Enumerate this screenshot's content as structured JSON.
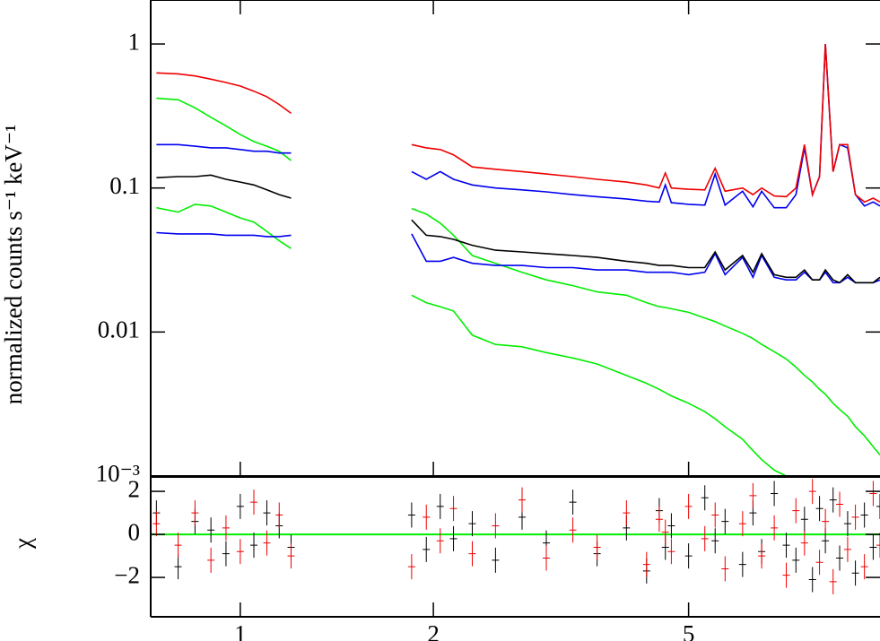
{
  "chart_data": [
    {
      "type": "line",
      "ylabel": "normalized counts s⁻¹ keV⁻¹",
      "log_x": true,
      "log_y": true,
      "xlim": [
        0.725,
        9.94
      ],
      "ylim": [
        0.001,
        2.02
      ],
      "xticks": [
        1,
        2,
        5
      ],
      "yticks": [
        {
          "value": 0.001,
          "label": "10⁻³"
        },
        0.01,
        0.1,
        1
      ],
      "x": [
        0.74,
        0.8,
        0.85,
        0.9,
        0.95,
        1.0,
        1.05,
        1.1,
        1.15,
        1.2,
        1.5,
        1.85,
        1.95,
        2.05,
        2.15,
        2.3,
        2.5,
        2.75,
        3.0,
        3.3,
        3.6,
        4.0,
        4.3,
        4.5,
        4.6,
        4.7,
        5.0,
        5.3,
        5.5,
        5.7,
        6.07,
        6.3,
        6.5,
        6.8,
        7.1,
        7.35,
        7.58,
        7.8,
        8.0,
        8.17,
        8.4,
        8.6,
        8.85,
        9.1,
        9.4,
        9.7,
        9.94
      ],
      "series": [
        {
          "color": "#00ee00",
          "values": [
            0.42,
            0.41,
            0.36,
            0.31,
            0.27,
            0.235,
            0.21,
            0.195,
            0.18,
            0.155,
            null,
            0.072,
            0.066,
            0.057,
            0.047,
            0.034,
            0.03,
            0.026,
            0.023,
            0.021,
            0.019,
            0.018,
            0.016,
            0.015,
            0.0148,
            0.0145,
            0.0137,
            0.0125,
            0.0118,
            0.011,
            0.0098,
            0.009,
            0.0082,
            0.0073,
            0.0065,
            0.0057,
            0.005,
            0.0045,
            0.004,
            0.0037,
            0.0032,
            0.0029,
            0.0026,
            0.0022,
            0.0019,
            0.0016,
            0.0014
          ]
        },
        {
          "color": "#00ee00",
          "values": [
            0.073,
            0.068,
            0.077,
            0.075,
            0.068,
            0.062,
            0.058,
            0.05,
            0.043,
            0.038,
            null,
            0.018,
            0.016,
            0.015,
            0.014,
            0.0095,
            0.0082,
            0.0079,
            0.0072,
            0.0066,
            0.006,
            0.005,
            0.0044,
            0.004,
            0.0038,
            0.0036,
            0.0032,
            0.0028,
            0.0025,
            0.0022,
            0.0018,
            0.0015,
            0.0013,
            0.0011,
            0.001,
            null,
            null,
            null,
            null,
            null,
            null,
            null,
            null,
            null,
            null,
            null,
            null
          ]
        },
        {
          "color": "#0000ee",
          "values": [
            0.2,
            0.2,
            0.195,
            0.19,
            0.19,
            0.185,
            0.18,
            0.18,
            0.175,
            0.175,
            null,
            0.13,
            0.115,
            0.13,
            0.115,
            0.105,
            0.1,
            0.097,
            0.094,
            0.09,
            0.087,
            0.084,
            0.081,
            0.08,
            0.105,
            0.079,
            0.077,
            0.076,
            0.125,
            0.076,
            0.095,
            0.074,
            0.095,
            0.073,
            0.073,
            0.09,
            0.19,
            0.09,
            0.12,
            1.0,
            0.13,
            0.2,
            0.19,
            0.09,
            0.075,
            0.08,
            0.075
          ]
        },
        {
          "color": "#0000ee",
          "values": [
            0.049,
            0.048,
            0.048,
            0.048,
            0.047,
            0.047,
            0.047,
            0.046,
            0.046,
            0.047,
            null,
            0.048,
            0.031,
            0.031,
            0.033,
            0.03,
            0.029,
            0.029,
            0.028,
            0.028,
            0.027,
            0.027,
            0.026,
            0.026,
            0.026,
            0.026,
            0.025,
            0.026,
            0.035,
            0.025,
            0.033,
            0.024,
            0.034,
            0.024,
            0.023,
            0.023,
            0.026,
            0.023,
            0.023,
            0.026,
            0.022,
            0.022,
            0.024,
            0.022,
            0.022,
            0.022,
            0.023
          ]
        },
        {
          "color": "#ee0000",
          "values": [
            0.63,
            0.62,
            0.6,
            0.57,
            0.54,
            0.51,
            0.47,
            0.43,
            0.38,
            0.33,
            null,
            0.2,
            0.19,
            0.185,
            0.17,
            0.14,
            0.135,
            0.13,
            0.125,
            0.12,
            0.115,
            0.11,
            0.105,
            0.1,
            0.127,
            0.1,
            0.098,
            0.097,
            0.137,
            0.095,
            0.1,
            0.09,
            0.1,
            0.088,
            0.087,
            0.1,
            0.2,
            0.09,
            0.12,
            1.0,
            0.13,
            0.2,
            0.2,
            0.09,
            0.08,
            0.085,
            0.08
          ]
        },
        {
          "color": "#000000",
          "values": [
            0.118,
            0.12,
            0.12,
            0.123,
            0.115,
            0.11,
            0.105,
            0.097,
            0.09,
            0.085,
            null,
            0.06,
            0.047,
            0.046,
            0.044,
            0.04,
            0.037,
            0.036,
            0.035,
            0.034,
            0.033,
            0.031,
            0.03,
            0.029,
            0.029,
            0.029,
            0.028,
            0.028,
            0.036,
            0.027,
            0.034,
            0.026,
            0.035,
            0.025,
            0.024,
            0.024,
            0.027,
            0.023,
            0.023,
            0.027,
            0.023,
            0.022,
            0.025,
            0.022,
            0.022,
            0.022,
            0.024
          ]
        }
      ]
    },
    {
      "type": "scatter",
      "ylabel": "χ",
      "log_x": true,
      "xlim": [
        0.725,
        9.94
      ],
      "ylim": [
        -3.83,
        2.67
      ],
      "xticks": [
        1,
        2,
        5
      ],
      "yticks": [
        {
          "value": -2,
          "label": "−2"
        },
        0,
        2
      ],
      "zero_line_color": "#00ee00",
      "x": [
        0.74,
        0.8,
        0.85,
        0.9,
        0.95,
        1.0,
        1.05,
        1.1,
        1.15,
        1.2,
        1.5,
        1.85,
        1.95,
        2.05,
        2.15,
        2.3,
        2.5,
        2.75,
        3.0,
        3.3,
        3.6,
        4.0,
        4.3,
        4.5,
        4.6,
        4.7,
        5.0,
        5.3,
        5.5,
        5.7,
        6.07,
        6.3,
        6.5,
        6.8,
        7.1,
        7.35,
        7.58,
        7.8,
        8.0,
        8.17,
        8.4,
        8.6,
        8.85,
        9.1,
        9.4,
        9.7,
        9.94
      ],
      "series": [
        {
          "color": "#000000",
          "values": [
            1.0,
            -1.5,
            0.6,
            0.2,
            -0.9,
            1.3,
            -0.5,
            1.0,
            0.4,
            -0.6,
            null,
            0.9,
            -0.7,
            1.3,
            -0.2,
            0.5,
            -1.2,
            0.8,
            -0.4,
            1.5,
            -0.9,
            0.3,
            -1.7,
            1.1,
            -0.6,
            0.4,
            -1.0,
            1.7,
            -0.3,
            0.6,
            -1.4,
            1.0,
            -0.8,
            1.9,
            -0.5,
            -1.2,
            0.7,
            -2.1,
            1.2,
            -0.3,
            1.6,
            -1.1,
            0.5,
            -1.8,
            0.9,
            -0.6,
            1.3
          ]
        },
        {
          "color": "#ee0000",
          "values": [
            0.5,
            -0.5,
            1.0,
            -1.2,
            0.3,
            -0.8,
            1.5,
            -0.4,
            0.9,
            -1.0,
            null,
            -1.5,
            0.8,
            -0.3,
            1.2,
            -0.9,
            0.4,
            1.6,
            -1.1,
            0.2,
            -0.6,
            1.0,
            -1.4,
            0.7,
            0.1,
            -0.8,
            1.3,
            -0.2,
            0.9,
            -1.6,
            0.5,
            1.8,
            -1.0,
            0.3,
            -1.9,
            1.1,
            -0.4,
            2.0,
            -1.3,
            0.6,
            -2.2,
            1.4,
            -0.7,
            0.8,
            -1.5,
            1.9,
            -0.5
          ]
        }
      ]
    }
  ]
}
